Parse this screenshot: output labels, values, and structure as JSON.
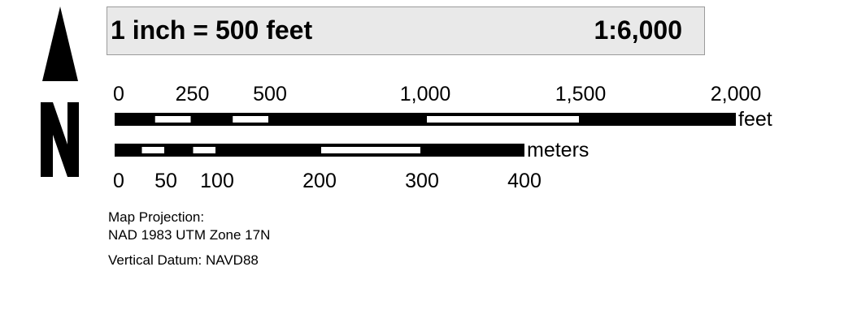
{
  "north_arrow": {
    "label": "N",
    "icon": "north-arrow-icon"
  },
  "scale": {
    "verbal": "1 inch = 500 feet",
    "ratio": "1:6,000"
  },
  "scalebar_feet": {
    "unit": "feet",
    "max": 2000,
    "segments": [
      0,
      125,
      250,
      375,
      500,
      1000,
      1500,
      2000
    ],
    "labels": [
      {
        "value": 0,
        "text": "0"
      },
      {
        "value": 250,
        "text": "250"
      },
      {
        "value": 500,
        "text": "500"
      },
      {
        "value": 1000,
        "text": "1,000"
      },
      {
        "value": 1500,
        "text": "1,500"
      },
      {
        "value": 2000,
        "text": "2,000"
      }
    ]
  },
  "scalebar_meters": {
    "unit": "meters",
    "max": 400,
    "segments": [
      0,
      25,
      50,
      75,
      100,
      200,
      300,
      400
    ],
    "labels": [
      {
        "value": 0,
        "text": "0"
      },
      {
        "value": 50,
        "text": "50"
      },
      {
        "value": 100,
        "text": "100"
      },
      {
        "value": 200,
        "text": "200"
      },
      {
        "value": 300,
        "text": "300"
      },
      {
        "value": 400,
        "text": "400"
      }
    ]
  },
  "info": {
    "projection_label": "Map Projection:",
    "projection_value": "NAD 1983 UTM Zone 17N",
    "vertical_datum": "Vertical Datum: NAVD88"
  },
  "colors": {
    "bar_fill": "#000000",
    "bar_alt": "#ffffff",
    "box_bg": "#e9e9e9"
  }
}
